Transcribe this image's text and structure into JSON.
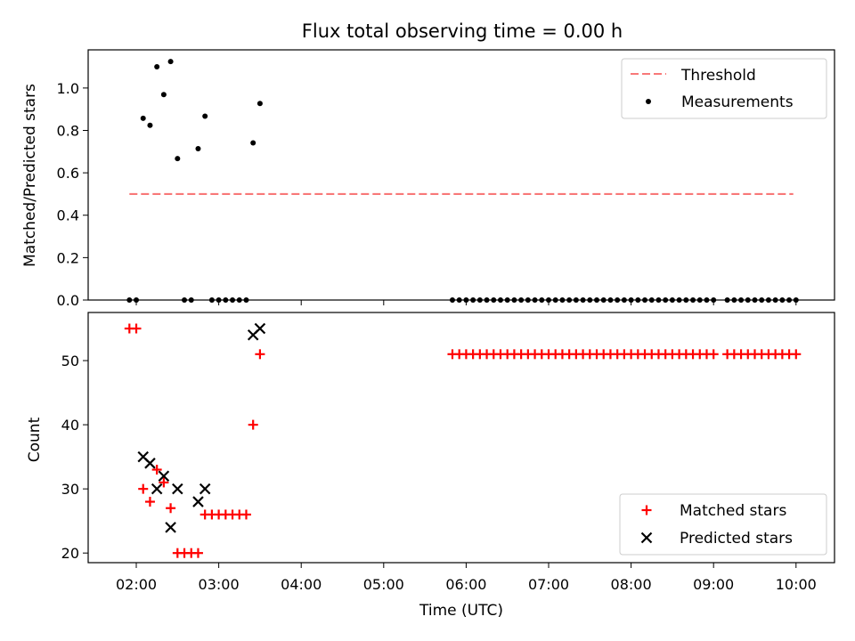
{
  "chart_data": [
    {
      "type": "scatter",
      "title": "Flux total observing time = 0.00 h",
      "xlabel": "",
      "ylabel": "Matched/Predicted stars",
      "ylim": [
        0,
        1.18
      ],
      "yticks": [
        "0.0",
        "0.2",
        "0.4",
        "0.6",
        "0.8",
        "1.0"
      ],
      "legend_placement": "top-right",
      "grid": false,
      "series": [
        {
          "name": "Threshold",
          "kind": "dashed-line",
          "color": "#f87878",
          "x": [
            "01:55",
            "09:58"
          ],
          "y": [
            0.5,
            0.5
          ]
        },
        {
          "name": "Measurements",
          "kind": "dot",
          "color": "#000000",
          "x": [
            "01:55",
            "02:00",
            "02:05",
            "02:10",
            "02:15",
            "02:20",
            "02:25",
            "02:30",
            "02:35",
            "02:40",
            "02:45",
            "02:50",
            "02:55",
            "03:00",
            "03:05",
            "03:10",
            "03:15",
            "03:20",
            "03:25",
            "03:30",
            "05:50",
            "05:55",
            "06:00",
            "06:05",
            "06:10",
            "06:15",
            "06:20",
            "06:25",
            "06:30",
            "06:35",
            "06:40",
            "06:45",
            "06:50",
            "06:55",
            "07:00",
            "07:05",
            "07:10",
            "07:15",
            "07:20",
            "07:25",
            "07:30",
            "07:35",
            "07:40",
            "07:45",
            "07:50",
            "07:55",
            "08:00",
            "08:05",
            "08:10",
            "08:15",
            "08:20",
            "08:25",
            "08:30",
            "08:35",
            "08:40",
            "08:45",
            "08:50",
            "08:55",
            "09:00",
            "09:10",
            "09:15",
            "09:20",
            "09:25",
            "09:30",
            "09:35",
            "09:40",
            "09:45",
            "09:50",
            "09:55",
            "10:00"
          ],
          "y": [
            0,
            0,
            0.857,
            0.824,
            1.1,
            0.969,
            1.125,
            0.667,
            0,
            0,
            0.714,
            0.867,
            0,
            0,
            0,
            0,
            0,
            0,
            0.741,
            0.927,
            0,
            0,
            0,
            0,
            0,
            0,
            0,
            0,
            0,
            0,
            0,
            0,
            0,
            0,
            0,
            0,
            0,
            0,
            0,
            0,
            0,
            0,
            0,
            0,
            0,
            0,
            0,
            0,
            0,
            0,
            0,
            0,
            0,
            0,
            0,
            0,
            0,
            0,
            0,
            0,
            0,
            0,
            0,
            0,
            0,
            0,
            0,
            0,
            0,
            0
          ]
        }
      ]
    },
    {
      "type": "scatter",
      "title": "",
      "xlabel": "Time (UTC)",
      "ylabel": "Count",
      "ylim": [
        18.5,
        57.5
      ],
      "yticks": [
        "20",
        "30",
        "40",
        "50"
      ],
      "xticks": [
        "02:00",
        "03:00",
        "04:00",
        "05:00",
        "06:00",
        "07:00",
        "08:00",
        "09:00",
        "10:00"
      ],
      "legend_placement": "bottom-right",
      "grid": false,
      "series": [
        {
          "name": "Matched stars",
          "kind": "plus",
          "color": "#ff0000",
          "x": [
            "01:55",
            "02:00",
            "02:05",
            "02:10",
            "02:15",
            "02:20",
            "02:25",
            "02:30",
            "02:35",
            "02:40",
            "02:45",
            "02:50",
            "02:55",
            "03:00",
            "03:05",
            "03:10",
            "03:15",
            "03:20",
            "03:25",
            "03:30",
            "05:50",
            "05:55",
            "06:00",
            "06:05",
            "06:10",
            "06:15",
            "06:20",
            "06:25",
            "06:30",
            "06:35",
            "06:40",
            "06:45",
            "06:50",
            "06:55",
            "07:00",
            "07:05",
            "07:10",
            "07:15",
            "07:20",
            "07:25",
            "07:30",
            "07:35",
            "07:40",
            "07:45",
            "07:50",
            "07:55",
            "08:00",
            "08:05",
            "08:10",
            "08:15",
            "08:20",
            "08:25",
            "08:30",
            "08:35",
            "08:40",
            "08:45",
            "08:50",
            "08:55",
            "09:00",
            "09:10",
            "09:15",
            "09:20",
            "09:25",
            "09:30",
            "09:35",
            "09:40",
            "09:45",
            "09:50",
            "09:55",
            "10:00"
          ],
          "y": [
            55,
            55,
            30,
            28,
            33,
            31,
            27,
            20,
            20,
            20,
            20,
            26,
            26,
            26,
            26,
            26,
            26,
            26,
            40,
            51,
            51,
            51,
            51,
            51,
            51,
            51,
            51,
            51,
            51,
            51,
            51,
            51,
            51,
            51,
            51,
            51,
            51,
            51,
            51,
            51,
            51,
            51,
            51,
            51,
            51,
            51,
            51,
            51,
            51,
            51,
            51,
            51,
            51,
            51,
            51,
            51,
            51,
            51,
            51,
            51,
            51,
            51,
            51,
            51,
            51,
            51,
            51,
            51,
            51,
            51
          ]
        },
        {
          "name": "Predicted stars",
          "kind": "cross",
          "color": "#000000",
          "x": [
            "02:05",
            "02:10",
            "02:15",
            "02:20",
            "02:25",
            "02:30",
            "02:45",
            "02:50",
            "03:25",
            "03:30"
          ],
          "y": [
            35,
            34,
            30,
            32,
            24,
            30,
            28,
            30,
            54,
            55
          ]
        }
      ]
    }
  ]
}
